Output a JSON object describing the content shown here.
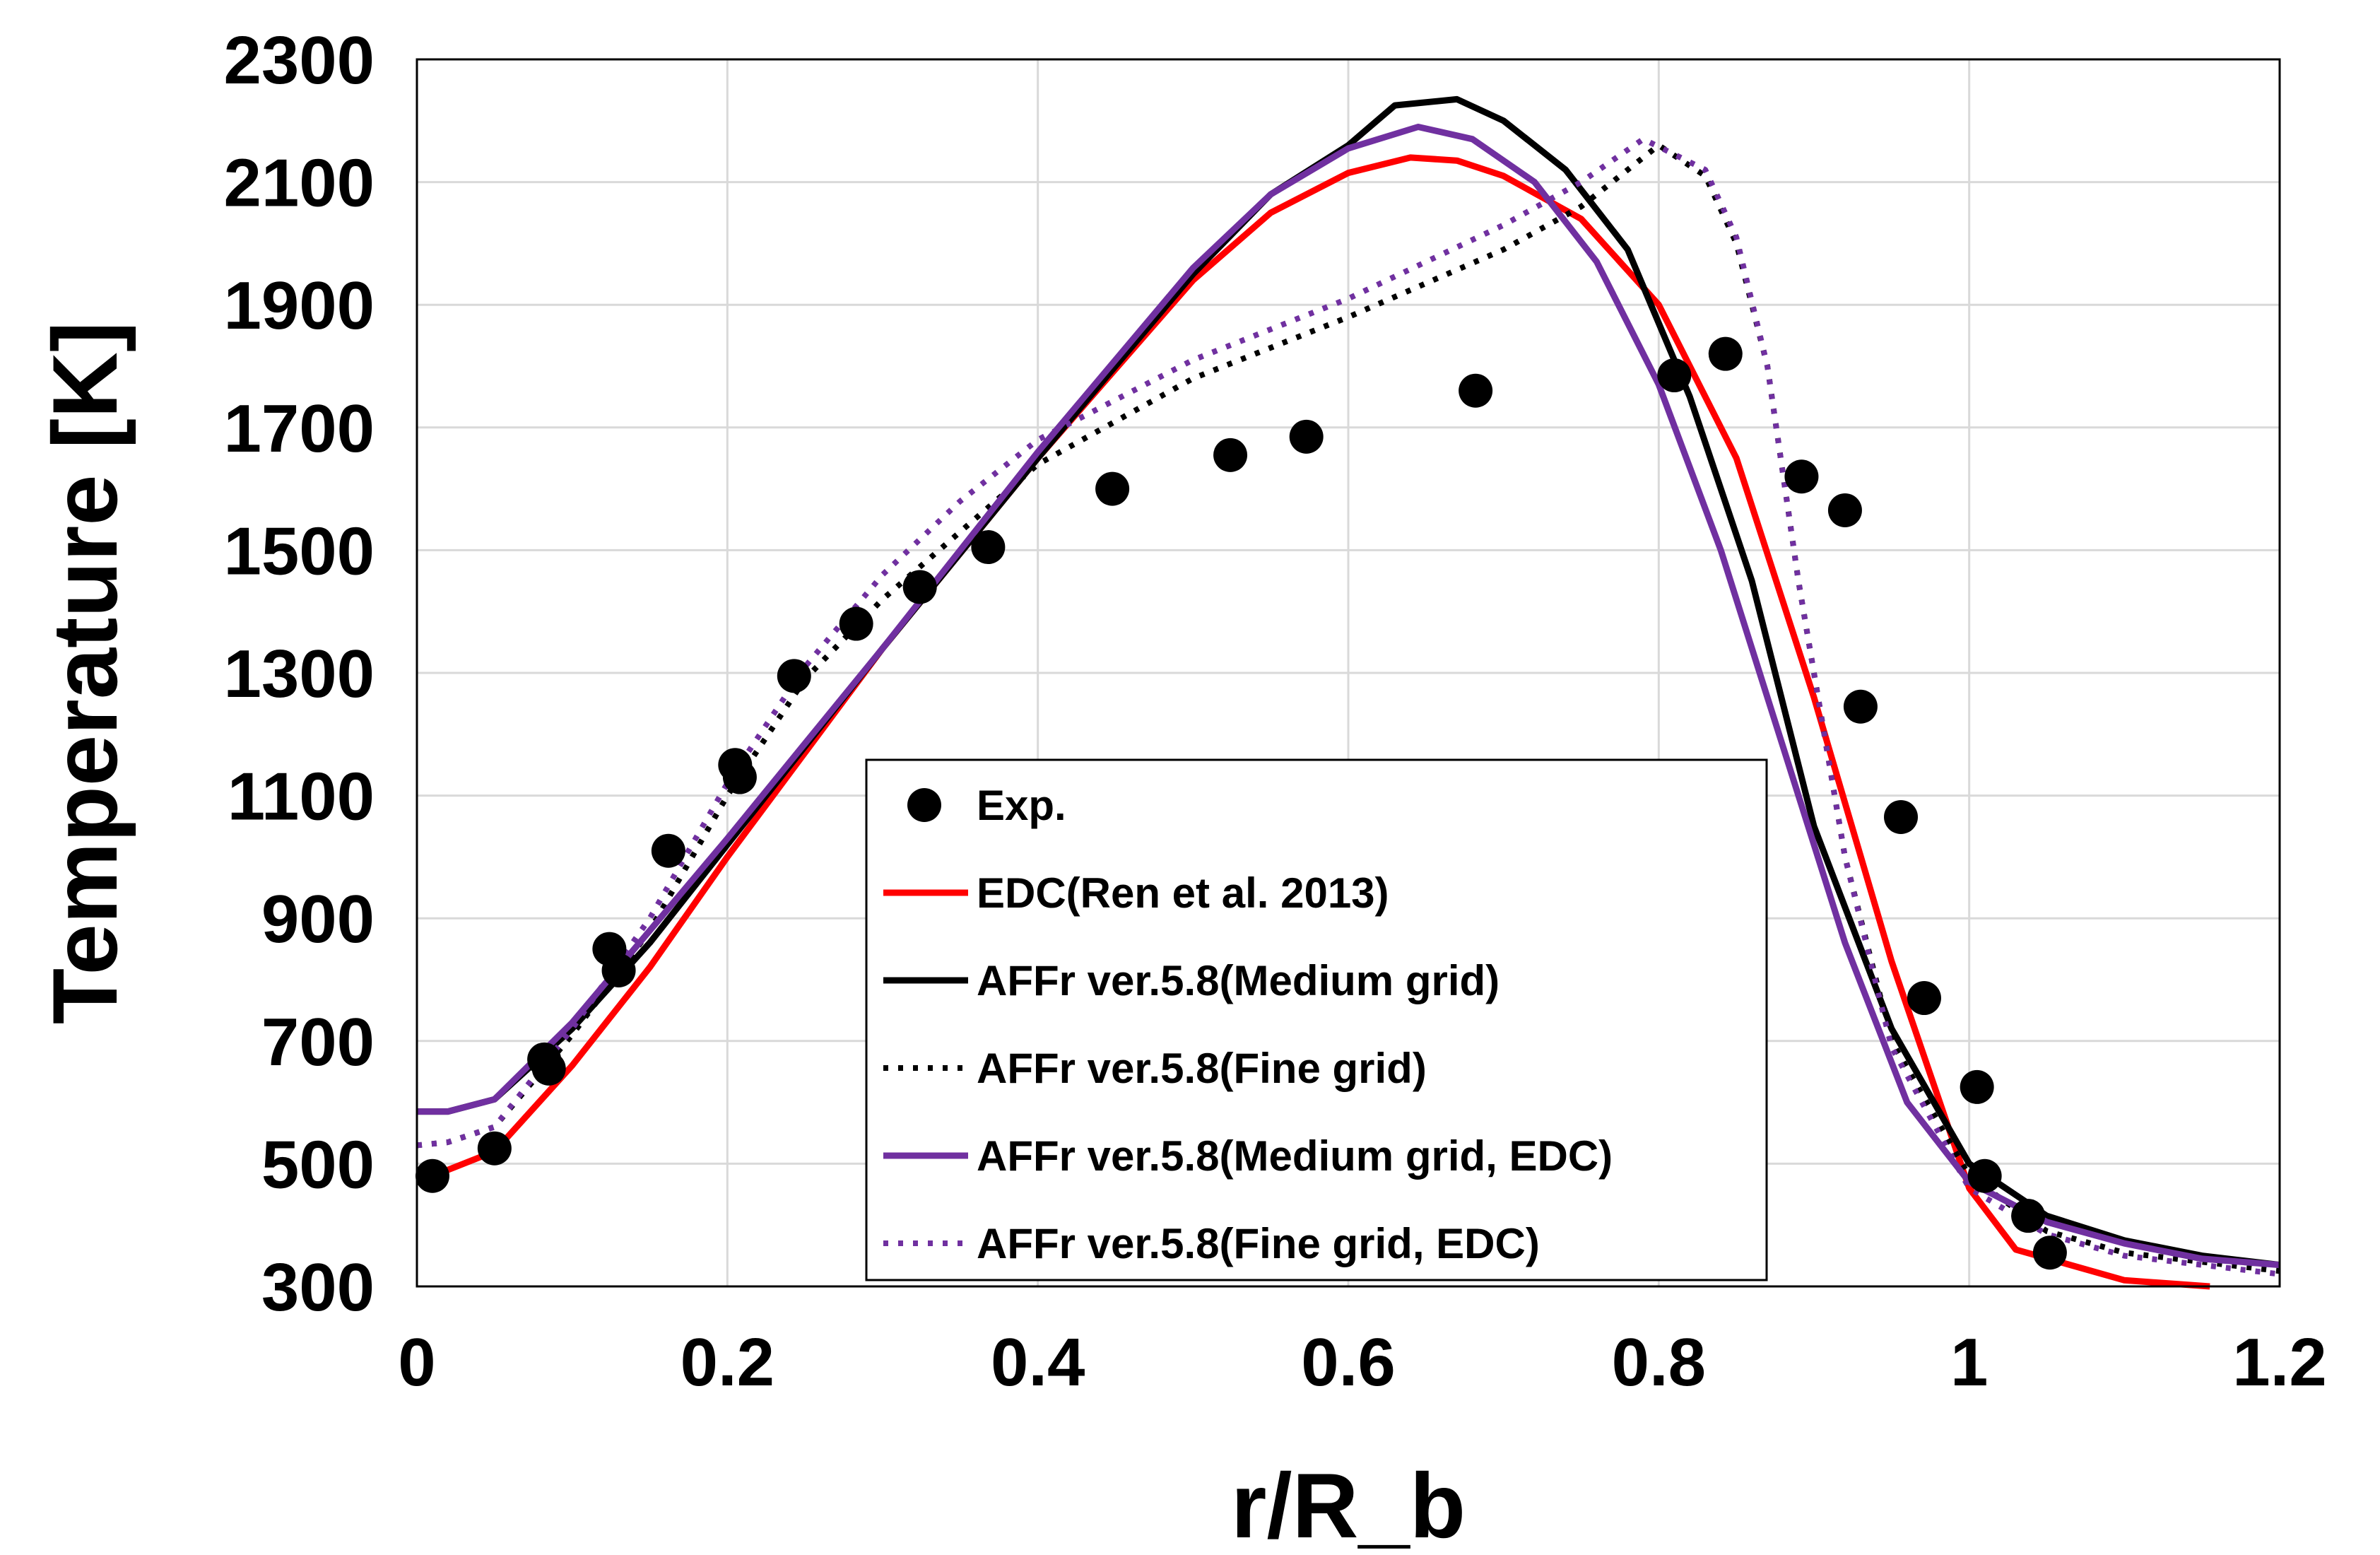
{
  "chart_data": {
    "type": "line",
    "title": "",
    "xlabel": "r/R_b",
    "ylabel": "Temperature [K]",
    "xlim": [
      0,
      1.2
    ],
    "ylim": [
      300,
      2300
    ],
    "xticks": [
      0,
      0.2,
      0.4,
      0.6,
      0.8,
      1,
      1.2
    ],
    "xtick_labels": [
      "0",
      "0.2",
      "0.4",
      "0.6",
      "0.8",
      "1",
      "1.2"
    ],
    "yticks": [
      300,
      500,
      700,
      900,
      1100,
      1300,
      1500,
      1700,
      1900,
      2100,
      2300
    ],
    "ytick_labels": [
      "300",
      "500",
      "700",
      "900",
      "1100",
      "1300",
      "1500",
      "1700",
      "1900",
      "2100",
      "2300"
    ],
    "grid": true,
    "legend_position": "bottom-center",
    "series": [
      {
        "name": "Exp.",
        "kind": "scatter",
        "color": "#000000",
        "points": [
          [
            0.01,
            480
          ],
          [
            0.05,
            525
          ],
          [
            0.082,
            670
          ],
          [
            0.085,
            655
          ],
          [
            0.124,
            850
          ],
          [
            0.13,
            815
          ],
          [
            0.162,
            1010
          ],
          [
            0.205,
            1150
          ],
          [
            0.208,
            1130
          ],
          [
            0.243,
            1295
          ],
          [
            0.283,
            1380
          ],
          [
            0.324,
            1440
          ],
          [
            0.368,
            1505
          ],
          [
            0.448,
            1600
          ],
          [
            0.524,
            1655
          ],
          [
            0.573,
            1685
          ],
          [
            0.682,
            1760
          ],
          [
            0.81,
            1785
          ],
          [
            0.843,
            1820
          ],
          [
            0.892,
            1620
          ],
          [
            0.92,
            1565
          ],
          [
            0.93,
            1245
          ],
          [
            0.956,
            1065
          ],
          [
            0.971,
            770
          ],
          [
            1.005,
            625
          ],
          [
            1.01,
            480
          ],
          [
            1.038,
            415
          ],
          [
            1.052,
            355
          ]
        ]
      },
      {
        "name": "EDC(Ren et al. 2013)",
        "kind": "line",
        "dash": "solid",
        "color": "#ff0000",
        "points": [
          [
            0.01,
            480
          ],
          [
            0.05,
            520
          ],
          [
            0.1,
            660
          ],
          [
            0.15,
            820
          ],
          [
            0.2,
            1000
          ],
          [
            0.3,
            1340
          ],
          [
            0.4,
            1650
          ],
          [
            0.5,
            1940
          ],
          [
            0.55,
            2050
          ],
          [
            0.6,
            2115
          ],
          [
            0.64,
            2140
          ],
          [
            0.67,
            2135
          ],
          [
            0.7,
            2110
          ],
          [
            0.75,
            2040
          ],
          [
            0.8,
            1900
          ],
          [
            0.85,
            1650
          ],
          [
            0.9,
            1260
          ],
          [
            0.95,
            830
          ],
          [
            1.0,
            460
          ],
          [
            1.03,
            360
          ],
          [
            1.1,
            310
          ],
          [
            1.155,
            300
          ]
        ]
      },
      {
        "name": "AFFr ver.5.8(Medium grid)",
        "kind": "line",
        "dash": "solid",
        "color": "#000000",
        "points": [
          [
            0.0,
            585
          ],
          [
            0.02,
            585
          ],
          [
            0.05,
            605
          ],
          [
            0.1,
            720
          ],
          [
            0.15,
            860
          ],
          [
            0.2,
            1020
          ],
          [
            0.3,
            1340
          ],
          [
            0.4,
            1650
          ],
          [
            0.5,
            1950
          ],
          [
            0.55,
            2080
          ],
          [
            0.6,
            2160
          ],
          [
            0.63,
            2225
          ],
          [
            0.67,
            2235
          ],
          [
            0.7,
            2200
          ],
          [
            0.74,
            2120
          ],
          [
            0.78,
            1990
          ],
          [
            0.82,
            1750
          ],
          [
            0.86,
            1450
          ],
          [
            0.9,
            1050
          ],
          [
            0.95,
            720
          ],
          [
            1.0,
            500
          ],
          [
            1.05,
            415
          ],
          [
            1.1,
            375
          ],
          [
            1.15,
            350
          ],
          [
            1.2,
            335
          ]
        ]
      },
      {
        "name": "AFFr ver.5.8(Fine grid)",
        "kind": "line",
        "dash": "dotted",
        "color": "#000000",
        "points": [
          [
            0.0,
            530
          ],
          [
            0.02,
            535
          ],
          [
            0.05,
            560
          ],
          [
            0.1,
            710
          ],
          [
            0.15,
            880
          ],
          [
            0.2,
            1100
          ],
          [
            0.25,
            1290
          ],
          [
            0.3,
            1420
          ],
          [
            0.35,
            1530
          ],
          [
            0.4,
            1640
          ],
          [
            0.5,
            1780
          ],
          [
            0.6,
            1880
          ],
          [
            0.7,
            1990
          ],
          [
            0.75,
            2060
          ],
          [
            0.8,
            2160
          ],
          [
            0.83,
            2110
          ],
          [
            0.85,
            2000
          ],
          [
            0.87,
            1800
          ],
          [
            0.89,
            1450
          ],
          [
            0.92,
            1000
          ],
          [
            0.95,
            700
          ],
          [
            1.0,
            480
          ],
          [
            1.05,
            390
          ],
          [
            1.1,
            355
          ],
          [
            1.2,
            325
          ]
        ]
      },
      {
        "name": "AFFr ver.5.8(Medium grid, EDC)",
        "kind": "line",
        "dash": "solid",
        "color": "#7030a0",
        "points": [
          [
            0.0,
            585
          ],
          [
            0.02,
            585
          ],
          [
            0.05,
            605
          ],
          [
            0.1,
            730
          ],
          [
            0.15,
            880
          ],
          [
            0.2,
            1030
          ],
          [
            0.3,
            1340
          ],
          [
            0.4,
            1660
          ],
          [
            0.5,
            1960
          ],
          [
            0.55,
            2080
          ],
          [
            0.6,
            2155
          ],
          [
            0.645,
            2190
          ],
          [
            0.68,
            2170
          ],
          [
            0.72,
            2100
          ],
          [
            0.76,
            1970
          ],
          [
            0.8,
            1770
          ],
          [
            0.84,
            1500
          ],
          [
            0.88,
            1180
          ],
          [
            0.92,
            860
          ],
          [
            0.96,
            600
          ],
          [
            1.0,
            470
          ],
          [
            1.05,
            405
          ],
          [
            1.1,
            370
          ],
          [
            1.15,
            345
          ],
          [
            1.2,
            335
          ]
        ]
      },
      {
        "name": "AFFr ver.5.8(Fine grid, EDC)",
        "kind": "line",
        "dash": "dotted",
        "color": "#7030a0",
        "points": [
          [
            0.0,
            530
          ],
          [
            0.02,
            535
          ],
          [
            0.05,
            560
          ],
          [
            0.1,
            720
          ],
          [
            0.15,
            900
          ],
          [
            0.2,
            1120
          ],
          [
            0.25,
            1310
          ],
          [
            0.3,
            1460
          ],
          [
            0.35,
            1580
          ],
          [
            0.4,
            1680
          ],
          [
            0.5,
            1810
          ],
          [
            0.6,
            1910
          ],
          [
            0.7,
            2030
          ],
          [
            0.75,
            2100
          ],
          [
            0.79,
            2170
          ],
          [
            0.83,
            2120
          ],
          [
            0.85,
            2010
          ],
          [
            0.87,
            1800
          ],
          [
            0.89,
            1450
          ],
          [
            0.92,
            1000
          ],
          [
            0.95,
            690
          ],
          [
            1.0,
            460
          ],
          [
            1.05,
            385
          ],
          [
            1.1,
            350
          ],
          [
            1.2,
            320
          ]
        ]
      }
    ]
  }
}
